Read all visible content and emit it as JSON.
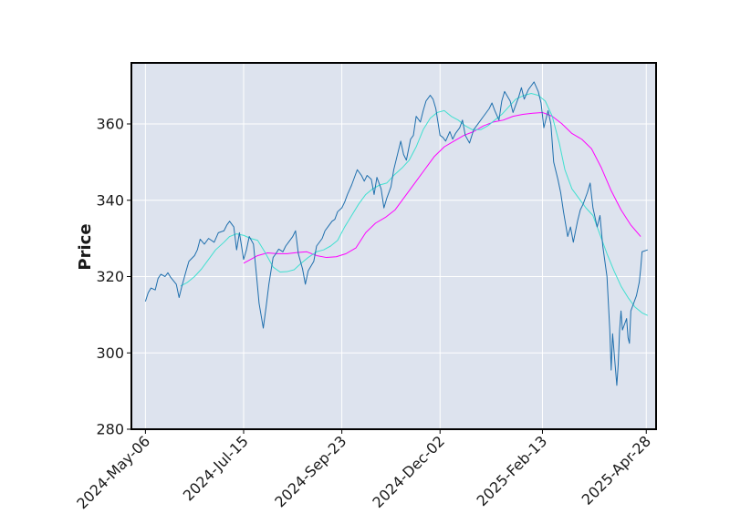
{
  "chart_data": {
    "type": "line",
    "title": "",
    "xlabel": "",
    "ylabel": "Price",
    "ylim": [
      280,
      376
    ],
    "xlim_dates": [
      "2024-04-26",
      "2025-05-05"
    ],
    "grid": true,
    "legend": "none",
    "colors": {
      "plot_background": "#dde3ee",
      "grid": "#ffffff",
      "axes_frame": "#000000",
      "price": "#1f6fad",
      "ma_short": "#40e0d0",
      "ma_long": "#ff00ff"
    },
    "x_tick_labels": [
      "2024-May-06",
      "2024-Jul-15",
      "2024-Sep-23",
      "2024-Dec-02",
      "2025-Feb-13",
      "2025-Apr-28"
    ],
    "x_tick_dates": [
      "2024-05-06",
      "2024-07-15",
      "2024-09-23",
      "2024-12-02",
      "2025-02-13",
      "2025-04-28"
    ],
    "y_ticks": [
      280,
      300,
      320,
      340,
      360
    ],
    "series": [
      {
        "key": "price",
        "points": [
          [
            "2024-05-06",
            313.5
          ],
          [
            "2024-05-08",
            315.8
          ],
          [
            "2024-05-10",
            317.0
          ],
          [
            "2024-05-13",
            316.5
          ],
          [
            "2024-05-15",
            319.5
          ],
          [
            "2024-05-17",
            320.6
          ],
          [
            "2024-05-20",
            320.0
          ],
          [
            "2024-05-22",
            321.0
          ],
          [
            "2024-05-24",
            319.8
          ],
          [
            "2024-05-28",
            318.0
          ],
          [
            "2024-05-30",
            314.5
          ],
          [
            "2024-06-01",
            317.5
          ],
          [
            "2024-06-04",
            321.5
          ],
          [
            "2024-06-06",
            324.0
          ],
          [
            "2024-06-10",
            325.5
          ],
          [
            "2024-06-12",
            327.0
          ],
          [
            "2024-06-14",
            329.8
          ],
          [
            "2024-06-17",
            328.5
          ],
          [
            "2024-06-20",
            330.0
          ],
          [
            "2024-06-24",
            329.0
          ],
          [
            "2024-06-27",
            331.5
          ],
          [
            "2024-07-01",
            332.0
          ],
          [
            "2024-07-03",
            333.5
          ],
          [
            "2024-07-05",
            334.5
          ],
          [
            "2024-07-08",
            333.0
          ],
          [
            "2024-07-10",
            327.0
          ],
          [
            "2024-07-12",
            331.5
          ],
          [
            "2024-07-15",
            324.5
          ],
          [
            "2024-07-17",
            327.0
          ],
          [
            "2024-07-19",
            330.5
          ],
          [
            "2024-07-22",
            328.5
          ],
          [
            "2024-07-24",
            321.0
          ],
          [
            "2024-07-26",
            313.0
          ],
          [
            "2024-07-29",
            306.5
          ],
          [
            "2024-07-31",
            312.0
          ],
          [
            "2024-08-02",
            318.0
          ],
          [
            "2024-08-05",
            325.0
          ],
          [
            "2024-08-07",
            326.0
          ],
          [
            "2024-08-09",
            327.2
          ],
          [
            "2024-08-12",
            326.5
          ],
          [
            "2024-08-14",
            328.0
          ],
          [
            "2024-08-16",
            329.0
          ],
          [
            "2024-08-19",
            330.5
          ],
          [
            "2024-08-21",
            332.0
          ],
          [
            "2024-08-23",
            326.0
          ],
          [
            "2024-08-26",
            322.0
          ],
          [
            "2024-08-28",
            318.0
          ],
          [
            "2024-08-30",
            321.5
          ],
          [
            "2024-09-03",
            324.0
          ],
          [
            "2024-09-05",
            328.0
          ],
          [
            "2024-09-09",
            330.0
          ],
          [
            "2024-09-11",
            332.0
          ],
          [
            "2024-09-13",
            333.0
          ],
          [
            "2024-09-16",
            334.5
          ],
          [
            "2024-09-18",
            335.0
          ],
          [
            "2024-09-20",
            337.0
          ],
          [
            "2024-09-23",
            338.0
          ],
          [
            "2024-09-25",
            339.5
          ],
          [
            "2024-09-27",
            341.5
          ],
          [
            "2024-09-30",
            344.0
          ],
          [
            "2024-10-02",
            346.0
          ],
          [
            "2024-10-04",
            348.0
          ],
          [
            "2024-10-07",
            346.5
          ],
          [
            "2024-10-09",
            345.0
          ],
          [
            "2024-10-11",
            346.5
          ],
          [
            "2024-10-14",
            345.5
          ],
          [
            "2024-10-16",
            341.5
          ],
          [
            "2024-10-18",
            346.0
          ],
          [
            "2024-10-21",
            343.0
          ],
          [
            "2024-10-23",
            338.0
          ],
          [
            "2024-10-25",
            340.5
          ],
          [
            "2024-10-28",
            343.5
          ],
          [
            "2024-10-30",
            348.0
          ],
          [
            "2024-11-01",
            351.0
          ],
          [
            "2024-11-04",
            355.5
          ],
          [
            "2024-11-06",
            352.0
          ],
          [
            "2024-11-08",
            350.5
          ],
          [
            "2024-11-11",
            356.0
          ],
          [
            "2024-11-13",
            357.0
          ],
          [
            "2024-11-15",
            362.0
          ],
          [
            "2024-11-18",
            360.5
          ],
          [
            "2024-11-20",
            363.5
          ],
          [
            "2024-11-22",
            366.0
          ],
          [
            "2024-11-25",
            367.5
          ],
          [
            "2024-11-27",
            366.5
          ],
          [
            "2024-11-29",
            364.0
          ],
          [
            "2024-12-02",
            357.0
          ],
          [
            "2024-12-04",
            356.5
          ],
          [
            "2024-12-06",
            355.5
          ],
          [
            "2024-12-09",
            358.0
          ],
          [
            "2024-12-11",
            356.0
          ],
          [
            "2024-12-13",
            357.5
          ],
          [
            "2024-12-16",
            359.0
          ],
          [
            "2024-12-18",
            361.0
          ],
          [
            "2024-12-20",
            357.0
          ],
          [
            "2024-12-23",
            355.0
          ],
          [
            "2024-12-26",
            358.5
          ],
          [
            "2024-12-30",
            360.5
          ],
          [
            "2025-01-02",
            362.0
          ],
          [
            "2025-01-06",
            364.0
          ],
          [
            "2025-01-08",
            365.5
          ],
          [
            "2025-01-10",
            363.5
          ],
          [
            "2025-01-13",
            361.0
          ],
          [
            "2025-01-15",
            366.0
          ],
          [
            "2025-01-17",
            368.5
          ],
          [
            "2025-01-21",
            366.0
          ],
          [
            "2025-01-23",
            363.0
          ],
          [
            "2025-01-27",
            367.0
          ],
          [
            "2025-01-29",
            369.5
          ],
          [
            "2025-01-31",
            366.5
          ],
          [
            "2025-02-03",
            369.0
          ],
          [
            "2025-02-05",
            370.0
          ],
          [
            "2025-02-07",
            371.0
          ],
          [
            "2025-02-10",
            368.5
          ],
          [
            "2025-02-12",
            365.5
          ],
          [
            "2025-02-14",
            359.0
          ],
          [
            "2025-02-17",
            363.5
          ],
          [
            "2025-02-19",
            360.0
          ],
          [
            "2025-02-21",
            350.0
          ],
          [
            "2025-02-24",
            345.5
          ],
          [
            "2025-02-26",
            342.0
          ],
          [
            "2025-02-28",
            337.0
          ],
          [
            "2025-03-03",
            330.5
          ],
          [
            "2025-03-05",
            333.0
          ],
          [
            "2025-03-07",
            329.0
          ],
          [
            "2025-03-10",
            334.5
          ],
          [
            "2025-03-12",
            337.5
          ],
          [
            "2025-03-14",
            339.0
          ],
          [
            "2025-03-17",
            342.0
          ],
          [
            "2025-03-19",
            344.5
          ],
          [
            "2025-03-21",
            338.0
          ],
          [
            "2025-03-24",
            333.0
          ],
          [
            "2025-03-26",
            336.0
          ],
          [
            "2025-03-28",
            328.0
          ],
          [
            "2025-03-31",
            320.0
          ],
          [
            "2025-04-02",
            306.0
          ],
          [
            "2025-04-03",
            295.5
          ],
          [
            "2025-04-04",
            305.0
          ],
          [
            "2025-04-07",
            291.5
          ],
          [
            "2025-04-08",
            297.0
          ],
          [
            "2025-04-09",
            306.0
          ],
          [
            "2025-04-10",
            311.0
          ],
          [
            "2025-04-11",
            306.0
          ],
          [
            "2025-04-14",
            309.0
          ],
          [
            "2025-04-15",
            304.0
          ],
          [
            "2025-04-16",
            302.5
          ],
          [
            "2025-04-17",
            311.0
          ],
          [
            "2025-04-21",
            315.0
          ],
          [
            "2025-04-23",
            318.5
          ],
          [
            "2025-04-24",
            322.0
          ],
          [
            "2025-04-25",
            326.5
          ],
          [
            "2025-04-29",
            327.0
          ]
        ]
      },
      {
        "key": "ma_short",
        "points": [
          [
            "2024-05-31",
            317.5
          ],
          [
            "2024-06-05",
            318.5
          ],
          [
            "2024-06-10",
            320.0
          ],
          [
            "2024-06-15",
            322.0
          ],
          [
            "2024-06-20",
            324.5
          ],
          [
            "2024-06-25",
            327.0
          ],
          [
            "2024-07-01",
            329.0
          ],
          [
            "2024-07-05",
            330.5
          ],
          [
            "2024-07-10",
            331.2
          ],
          [
            "2024-07-15",
            330.8
          ],
          [
            "2024-07-20",
            330.0
          ],
          [
            "2024-07-25",
            329.5
          ],
          [
            "2024-07-30",
            326.5
          ],
          [
            "2024-08-05",
            322.5
          ],
          [
            "2024-08-10",
            321.2
          ],
          [
            "2024-08-15",
            321.3
          ],
          [
            "2024-08-20",
            321.8
          ],
          [
            "2024-08-25",
            323.5
          ],
          [
            "2024-08-30",
            325.0
          ],
          [
            "2024-09-05",
            326.5
          ],
          [
            "2024-09-10",
            327.0
          ],
          [
            "2024-09-15",
            328.0
          ],
          [
            "2024-09-20",
            329.5
          ],
          [
            "2024-09-25",
            333.0
          ],
          [
            "2024-09-30",
            336.0
          ],
          [
            "2024-10-05",
            339.0
          ],
          [
            "2024-10-10",
            341.5
          ],
          [
            "2024-10-15",
            343.0
          ],
          [
            "2024-10-20",
            344.0
          ],
          [
            "2024-10-25",
            344.5
          ],
          [
            "2024-10-30",
            346.5
          ],
          [
            "2024-11-05",
            348.5
          ],
          [
            "2024-11-10",
            350.5
          ],
          [
            "2024-11-15",
            354.0
          ],
          [
            "2024-11-20",
            358.5
          ],
          [
            "2024-11-25",
            361.5
          ],
          [
            "2024-11-30",
            363.0
          ],
          [
            "2024-12-05",
            363.5
          ],
          [
            "2024-12-10",
            362.0
          ],
          [
            "2024-12-15",
            361.0
          ],
          [
            "2024-12-20",
            359.5
          ],
          [
            "2024-12-25",
            358.5
          ],
          [
            "2024-12-31",
            358.5
          ],
          [
            "2025-01-05",
            359.5
          ],
          [
            "2025-01-10",
            361.0
          ],
          [
            "2025-01-15",
            362.5
          ],
          [
            "2025-01-20",
            364.5
          ],
          [
            "2025-01-25",
            366.5
          ],
          [
            "2025-01-31",
            367.5
          ],
          [
            "2025-02-05",
            368.0
          ],
          [
            "2025-02-10",
            367.5
          ],
          [
            "2025-02-15",
            366.0
          ],
          [
            "2025-02-20",
            362.0
          ],
          [
            "2025-02-25",
            355.0
          ],
          [
            "2025-03-01",
            348.0
          ],
          [
            "2025-03-06",
            343.0
          ],
          [
            "2025-03-11",
            340.5
          ],
          [
            "2025-03-16",
            338.0
          ],
          [
            "2025-03-21",
            336.0
          ],
          [
            "2025-03-26",
            331.0
          ],
          [
            "2025-03-31",
            326.0
          ],
          [
            "2025-04-05",
            321.5
          ],
          [
            "2025-04-10",
            317.5
          ],
          [
            "2025-04-15",
            314.5
          ],
          [
            "2025-04-20",
            312.0
          ],
          [
            "2025-04-25",
            310.5
          ],
          [
            "2025-04-29",
            309.8
          ]
        ]
      },
      {
        "key": "ma_long",
        "points": [
          [
            "2024-07-15",
            323.5
          ],
          [
            "2024-07-20",
            324.5
          ],
          [
            "2024-07-25",
            325.5
          ],
          [
            "2024-08-01",
            326.2
          ],
          [
            "2024-08-08",
            326.0
          ],
          [
            "2024-08-15",
            326.0
          ],
          [
            "2024-08-22",
            326.3
          ],
          [
            "2024-08-29",
            326.5
          ],
          [
            "2024-09-05",
            325.5
          ],
          [
            "2024-09-12",
            325.0
          ],
          [
            "2024-09-19",
            325.2
          ],
          [
            "2024-09-26",
            326.0
          ],
          [
            "2024-10-03",
            327.5
          ],
          [
            "2024-10-10",
            331.5
          ],
          [
            "2024-10-17",
            334.0
          ],
          [
            "2024-10-24",
            335.5
          ],
          [
            "2024-10-31",
            337.5
          ],
          [
            "2024-11-07",
            341.0
          ],
          [
            "2024-11-14",
            344.5
          ],
          [
            "2024-11-21",
            348.0
          ],
          [
            "2024-11-28",
            351.5
          ],
          [
            "2024-12-05",
            354.0
          ],
          [
            "2024-12-12",
            355.5
          ],
          [
            "2024-12-19",
            357.0
          ],
          [
            "2024-12-26",
            358.0
          ],
          [
            "2025-01-02",
            359.5
          ],
          [
            "2025-01-09",
            360.5
          ],
          [
            "2025-01-16",
            361.0
          ],
          [
            "2025-01-23",
            362.0
          ],
          [
            "2025-01-30",
            362.5
          ],
          [
            "2025-02-06",
            362.8
          ],
          [
            "2025-02-13",
            363.0
          ],
          [
            "2025-02-20",
            362.0
          ],
          [
            "2025-02-27",
            360.0
          ],
          [
            "2025-03-06",
            357.5
          ],
          [
            "2025-03-13",
            356.0
          ],
          [
            "2025-03-20",
            353.5
          ],
          [
            "2025-03-27",
            348.5
          ],
          [
            "2025-04-03",
            342.5
          ],
          [
            "2025-04-10",
            337.5
          ],
          [
            "2025-04-17",
            333.5
          ],
          [
            "2025-04-24",
            330.5
          ]
        ]
      }
    ]
  }
}
